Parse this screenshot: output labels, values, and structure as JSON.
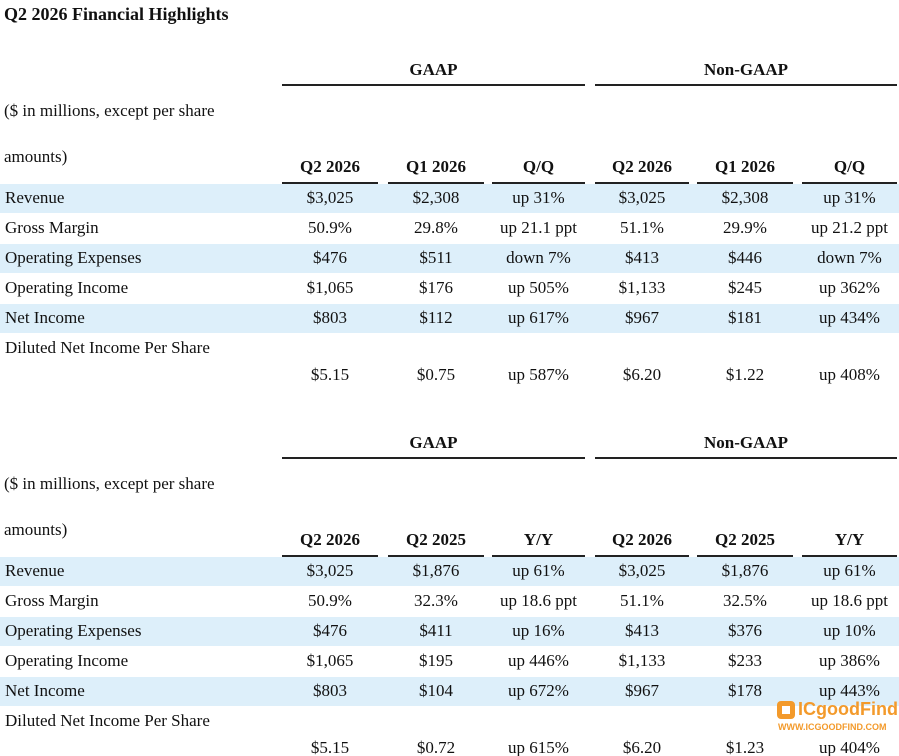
{
  "title": "Q2 2026 Financial Highlights",
  "tables": [
    {
      "groups": [
        "GAAP",
        "Non-GAAP"
      ],
      "units": [
        "($ in millions, except per share",
        "amounts)"
      ],
      "columns": [
        "Q2 2026",
        "Q1 2026",
        "Q/Q",
        "Q2 2026",
        "Q1 2026",
        "Q/Q"
      ],
      "rows": [
        {
          "label": "Revenue",
          "values": [
            "$3,025",
            "$2,308",
            "up 31%",
            "$3,025",
            "$2,308",
            "up 31%"
          ]
        },
        {
          "label": "Gross Margin",
          "values": [
            "50.9%",
            "29.8%",
            "up 21.1 ppt",
            "51.1%",
            "29.9%",
            "up 21.2 ppt"
          ]
        },
        {
          "label": "Operating Expenses",
          "values": [
            "$476",
            "$511",
            "down 7%",
            "$413",
            "$446",
            "down 7%"
          ]
        },
        {
          "label": "Operating Income",
          "values": [
            "$1,065",
            "$176",
            "up 505%",
            "$1,133",
            "$245",
            "up 362%"
          ]
        },
        {
          "label": "Net Income",
          "values": [
            "$803",
            "$112",
            "up 617%",
            "$967",
            "$181",
            "up 434%"
          ]
        },
        {
          "label": "Diluted Net Income Per Share",
          "values": [
            "$5.15",
            "$0.75",
            "up 587%",
            "$6.20",
            "$1.22",
            "up 408%"
          ]
        }
      ]
    },
    {
      "groups": [
        "GAAP",
        "Non-GAAP"
      ],
      "units": [
        "($ in millions, except per share",
        "amounts)"
      ],
      "columns": [
        "Q2 2026",
        "Q2 2025",
        "Y/Y",
        "Q2 2026",
        "Q2 2025",
        "Y/Y"
      ],
      "rows": [
        {
          "label": "Revenue",
          "values": [
            "$3,025",
            "$1,876",
            "up 61%",
            "$3,025",
            "$1,876",
            "up 61%"
          ]
        },
        {
          "label": "Gross Margin",
          "values": [
            "50.9%",
            "32.3%",
            "up 18.6 ppt",
            "51.1%",
            "32.5%",
            "up 18.6 ppt"
          ]
        },
        {
          "label": "Operating Expenses",
          "values": [
            "$476",
            "$411",
            "up 16%",
            "$413",
            "$376",
            "up 10%"
          ]
        },
        {
          "label": "Operating Income",
          "values": [
            "$1,065",
            "$195",
            "up 446%",
            "$1,133",
            "$233",
            "up 386%"
          ]
        },
        {
          "label": "Net Income",
          "values": [
            "$803",
            "$104",
            "up 672%",
            "$967",
            "$178",
            "up 443%"
          ]
        },
        {
          "label": "Diluted Net Income Per Share",
          "values": [
            "$5.15",
            "$0.72",
            "up 615%",
            "$6.20",
            "$1.23",
            "up 404%"
          ]
        }
      ]
    }
  ],
  "watermark": {
    "brand": "ICgoodFind",
    "url": "WWW.ICGOODFIND.COM"
  }
}
